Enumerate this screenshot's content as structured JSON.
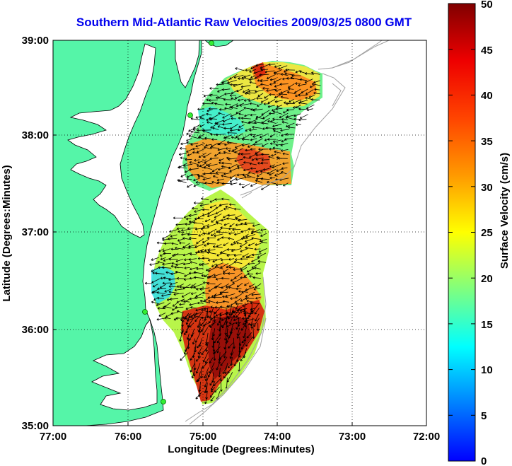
{
  "title": "Southern Mid-Atlantic Raw Velocities 2009/03/25 0800 GMT",
  "axes": {
    "x_label": "Longitude (Degrees:Minutes)",
    "y_label": "Latitude (Degrees:Minutes)",
    "x_ticks": [
      "77:00",
      "76:00",
      "75:00",
      "74:00",
      "73:00",
      "72:00"
    ],
    "y_ticks": [
      "39:00",
      "38:00",
      "37:00",
      "36:00",
      "35:00"
    ]
  },
  "colorbar": {
    "label": "Surface Velocity (cm/s)",
    "ticks": [
      "50",
      "45",
      "40",
      "35",
      "30",
      "25",
      "20",
      "15",
      "10",
      "5",
      "0"
    ],
    "min": 0,
    "max": 50
  },
  "colors": {
    "land": "#55f5a8",
    "coast": "#000000",
    "title": "#0000ee",
    "grid": "#000000",
    "bathymetry": "#a0a0a0"
  }
}
